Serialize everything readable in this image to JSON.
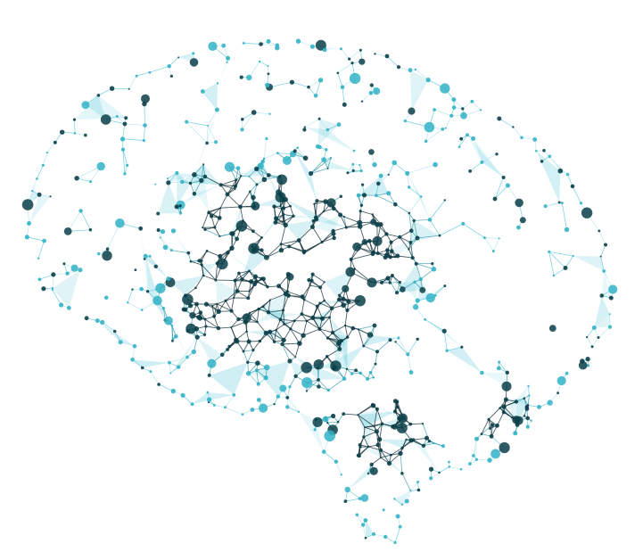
{
  "image": {
    "subject": "brain-network",
    "background_color": "#ffffff",
    "colors": {
      "faint_link": "#b5e6ef",
      "mid_link": "#4fc3d6",
      "strong_link": "#1b8fa3",
      "dense_link": "#0e2a31",
      "node_light": "#33b3c7",
      "node_dark": "#0b3f49"
    }
  }
}
